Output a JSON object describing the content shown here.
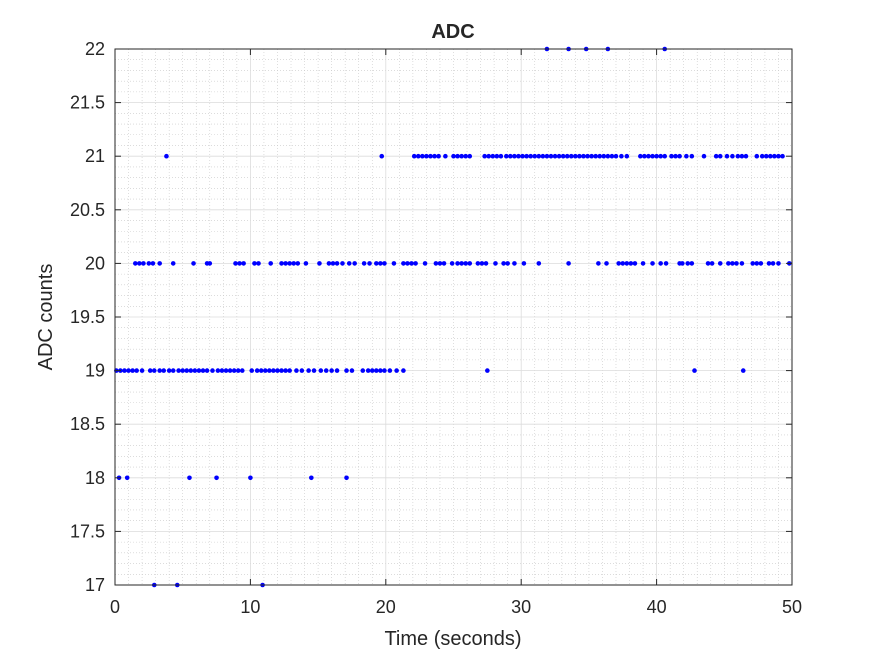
{
  "chart_data": {
    "type": "scatter",
    "title": "ADC",
    "xlabel": "Time (seconds)",
    "ylabel": "ADC counts",
    "xlim": [
      0,
      50
    ],
    "ylim": [
      17,
      22
    ],
    "xticks": [
      0,
      10,
      20,
      30,
      40,
      50
    ],
    "xtick_labels": [
      "0",
      "10",
      "20",
      "30",
      "40",
      "50"
    ],
    "yticks": [
      17,
      17.5,
      18,
      18.5,
      19,
      19.5,
      20,
      20.5,
      21,
      21.5,
      22
    ],
    "ytick_labels": [
      "17",
      "17.5",
      "18",
      "18.5",
      "19",
      "19.5",
      "20",
      "20.5",
      "21",
      "21.5",
      "22"
    ],
    "grid": "major and minor",
    "marker_color": "#0000ff",
    "series": [
      {
        "levels": [
          {
            "y": 22,
            "x": [
              31.9,
              33.5,
              34.8,
              36.4,
              40.6
            ]
          },
          {
            "y": 21,
            "x": [
              3.8,
              19.7,
              22.1,
              22.4,
              22.7,
              23.0,
              23.3,
              23.6,
              23.9,
              24.4,
              25.0,
              25.3,
              25.6,
              25.9,
              26.2,
              27.3,
              27.6,
              27.9,
              28.2,
              28.5,
              28.9,
              29.2,
              29.5,
              29.8,
              30.1,
              30.4,
              30.7,
              31.0,
              31.3,
              31.6,
              31.9,
              32.2,
              32.5,
              32.8,
              33.1,
              33.4,
              33.7,
              34.0,
              34.3,
              34.6,
              34.9,
              35.2,
              35.5,
              35.8,
              36.1,
              36.4,
              36.7,
              37.0,
              37.4,
              37.8,
              38.8,
              39.1,
              39.4,
              39.7,
              40.0,
              40.3,
              40.6,
              41.1,
              41.4,
              41.7,
              42.2,
              42.6,
              43.5,
              44.4,
              44.7,
              45.2,
              45.6,
              46.0,
              46.3,
              46.6,
              47.4,
              47.8,
              48.1,
              48.4,
              48.7,
              49.0,
              49.3
            ]
          },
          {
            "y": 20,
            "x": [
              1.5,
              1.8,
              2.1,
              2.5,
              2.8,
              3.3,
              4.3,
              5.8,
              6.8,
              7.0,
              8.9,
              9.2,
              9.5,
              10.3,
              10.6,
              11.5,
              12.3,
              12.6,
              12.9,
              13.2,
              13.5,
              14.1,
              15.1,
              15.8,
              16.1,
              16.4,
              16.8,
              17.3,
              17.7,
              18.4,
              18.8,
              19.3,
              19.6,
              19.9,
              20.6,
              21.3,
              21.6,
              21.9,
              22.2,
              22.9,
              23.7,
              24.0,
              24.3,
              24.9,
              25.3,
              25.6,
              25.9,
              26.2,
              26.8,
              27.1,
              27.4,
              28.1,
              28.7,
              29.0,
              29.5,
              30.2,
              31.3,
              33.5,
              35.7,
              36.3,
              37.2,
              37.5,
              37.8,
              38.1,
              38.4,
              39.0,
              39.7,
              40.3,
              40.7,
              41.7,
              41.9,
              42.3,
              42.6,
              43.8,
              44.1,
              44.7,
              45.3,
              45.6,
              45.9,
              46.3,
              47.1,
              47.4,
              47.7,
              48.3,
              48.6,
              49.0,
              49.8
            ]
          },
          {
            "y": 19,
            "x": [
              0.1,
              0.4,
              0.7,
              1.0,
              1.3,
              1.6,
              2.0,
              2.6,
              2.9,
              3.3,
              3.6,
              4.0,
              4.3,
              4.7,
              5.0,
              5.3,
              5.6,
              5.9,
              6.2,
              6.5,
              6.8,
              7.2,
              7.6,
              7.9,
              8.2,
              8.5,
              8.8,
              9.1,
              9.4,
              10.1,
              10.5,
              10.8,
              11.1,
              11.4,
              11.7,
              12.0,
              12.3,
              12.6,
              12.9,
              13.4,
              13.8,
              14.3,
              14.7,
              15.2,
              15.6,
              16.0,
              16.4,
              17.1,
              17.5,
              18.3,
              18.7,
              19.0,
              19.3,
              19.6,
              19.9,
              20.3,
              20.8,
              21.3,
              27.5,
              42.8,
              46.4
            ]
          },
          {
            "y": 18,
            "x": [
              0.3,
              0.9,
              5.5,
              7.5,
              10.0,
              14.5,
              17.1
            ]
          },
          {
            "y": 17,
            "x": [
              2.9,
              4.6,
              10.9
            ]
          }
        ]
      }
    ]
  }
}
